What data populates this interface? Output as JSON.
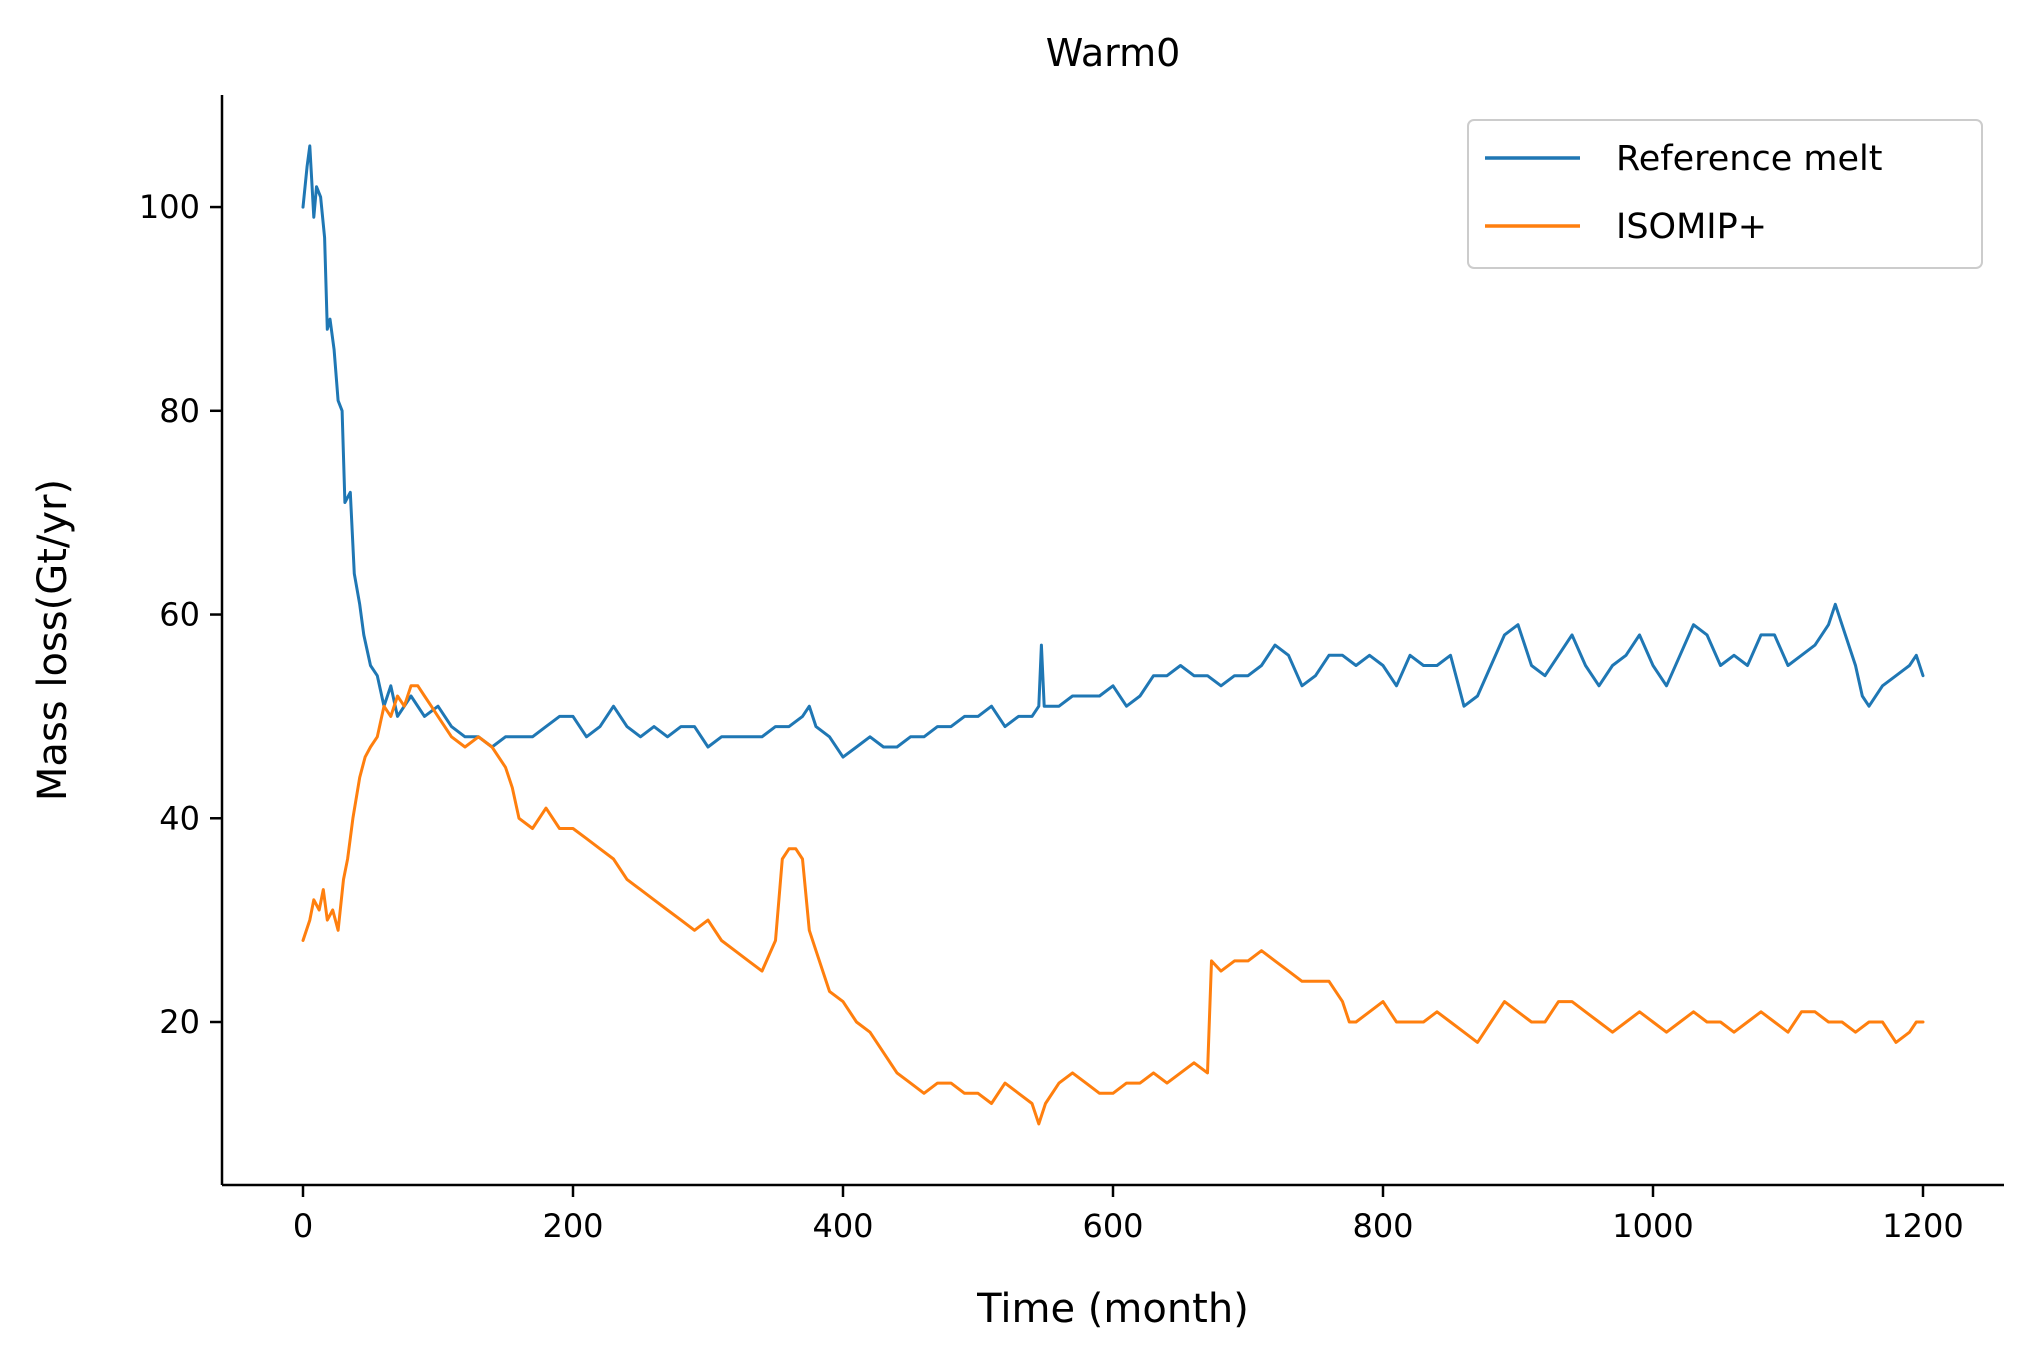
{
  "chart_data": {
    "type": "line",
    "title": "Warm0",
    "xlabel": "Time (month)",
    "ylabel": "Mass loss(Gt/yr)",
    "xlim": [
      -60,
      1260
    ],
    "ylim": [
      4,
      111
    ],
    "xticks": [
      0,
      200,
      400,
      600,
      800,
      1000,
      1200
    ],
    "yticks": [
      20,
      40,
      60,
      80,
      100
    ],
    "xtick_labels": [
      "0",
      "200",
      "400",
      "600",
      "800",
      "1000",
      "1200"
    ],
    "ytick_labels": [
      "20",
      "40",
      "60",
      "80",
      "100"
    ],
    "grid": false,
    "legend_position": "top-right",
    "series": [
      {
        "name": "Reference melt",
        "color": "#1f77b4",
        "points": [
          [
            0,
            100
          ],
          [
            3,
            104
          ],
          [
            5,
            106
          ],
          [
            8,
            99
          ],
          [
            10,
            102
          ],
          [
            13,
            101
          ],
          [
            16,
            97
          ],
          [
            18,
            88
          ],
          [
            20,
            89
          ],
          [
            23,
            86
          ],
          [
            26,
            81
          ],
          [
            29,
            80
          ],
          [
            31,
            71
          ],
          [
            35,
            72
          ],
          [
            38,
            64
          ],
          [
            42,
            61
          ],
          [
            45,
            58
          ],
          [
            50,
            55
          ],
          [
            55,
            54
          ],
          [
            60,
            51
          ],
          [
            65,
            53
          ],
          [
            70,
            50
          ],
          [
            80,
            52
          ],
          [
            90,
            50
          ],
          [
            100,
            51
          ],
          [
            110,
            49
          ],
          [
            120,
            48
          ],
          [
            130,
            48
          ],
          [
            140,
            47
          ],
          [
            150,
            48
          ],
          [
            160,
            48
          ],
          [
            170,
            48
          ],
          [
            180,
            49
          ],
          [
            190,
            50
          ],
          [
            200,
            50
          ],
          [
            210,
            48
          ],
          [
            220,
            49
          ],
          [
            230,
            51
          ],
          [
            240,
            49
          ],
          [
            250,
            48
          ],
          [
            260,
            49
          ],
          [
            270,
            48
          ],
          [
            280,
            49
          ],
          [
            290,
            49
          ],
          [
            300,
            47
          ],
          [
            310,
            48
          ],
          [
            320,
            48
          ],
          [
            330,
            48
          ],
          [
            340,
            48
          ],
          [
            350,
            49
          ],
          [
            360,
            49
          ],
          [
            370,
            50
          ],
          [
            375,
            51
          ],
          [
            380,
            49
          ],
          [
            390,
            48
          ],
          [
            400,
            46
          ],
          [
            410,
            47
          ],
          [
            420,
            48
          ],
          [
            430,
            47
          ],
          [
            440,
            47
          ],
          [
            450,
            48
          ],
          [
            460,
            48
          ],
          [
            470,
            49
          ],
          [
            480,
            49
          ],
          [
            490,
            50
          ],
          [
            500,
            50
          ],
          [
            510,
            51
          ],
          [
            520,
            49
          ],
          [
            530,
            50
          ],
          [
            540,
            50
          ],
          [
            545,
            51
          ],
          [
            547,
            57
          ],
          [
            549,
            51
          ],
          [
            560,
            51
          ],
          [
            570,
            52
          ],
          [
            580,
            52
          ],
          [
            590,
            52
          ],
          [
            600,
            53
          ],
          [
            610,
            51
          ],
          [
            620,
            52
          ],
          [
            630,
            54
          ],
          [
            640,
            54
          ],
          [
            650,
            55
          ],
          [
            660,
            54
          ],
          [
            670,
            54
          ],
          [
            680,
            53
          ],
          [
            690,
            54
          ],
          [
            700,
            54
          ],
          [
            710,
            55
          ],
          [
            720,
            57
          ],
          [
            730,
            56
          ],
          [
            740,
            53
          ],
          [
            750,
            54
          ],
          [
            760,
            56
          ],
          [
            770,
            56
          ],
          [
            780,
            55
          ],
          [
            790,
            56
          ],
          [
            800,
            55
          ],
          [
            810,
            53
          ],
          [
            820,
            56
          ],
          [
            830,
            55
          ],
          [
            840,
            55
          ],
          [
            850,
            56
          ],
          [
            860,
            51
          ],
          [
            870,
            52
          ],
          [
            880,
            55
          ],
          [
            890,
            58
          ],
          [
            900,
            59
          ],
          [
            910,
            55
          ],
          [
            920,
            54
          ],
          [
            930,
            56
          ],
          [
            940,
            58
          ],
          [
            950,
            55
          ],
          [
            960,
            53
          ],
          [
            970,
            55
          ],
          [
            980,
            56
          ],
          [
            990,
            58
          ],
          [
            1000,
            55
          ],
          [
            1010,
            53
          ],
          [
            1020,
            56
          ],
          [
            1030,
            59
          ],
          [
            1040,
            58
          ],
          [
            1050,
            55
          ],
          [
            1060,
            56
          ],
          [
            1070,
            55
          ],
          [
            1080,
            58
          ],
          [
            1090,
            58
          ],
          [
            1100,
            55
          ],
          [
            1110,
            56
          ],
          [
            1120,
            57
          ],
          [
            1130,
            59
          ],
          [
            1135,
            61
          ],
          [
            1140,
            59
          ],
          [
            1150,
            55
          ],
          [
            1155,
            52
          ],
          [
            1160,
            51
          ],
          [
            1170,
            53
          ],
          [
            1180,
            54
          ],
          [
            1190,
            55
          ],
          [
            1195,
            56
          ],
          [
            1200,
            54
          ]
        ]
      },
      {
        "name": "ISOMIP+",
        "color": "#ff7f0e",
        "points": [
          [
            0,
            28
          ],
          [
            5,
            30
          ],
          [
            8,
            32
          ],
          [
            12,
            31
          ],
          [
            15,
            33
          ],
          [
            18,
            30
          ],
          [
            22,
            31
          ],
          [
            26,
            29
          ],
          [
            30,
            34
          ],
          [
            33,
            36
          ],
          [
            37,
            40
          ],
          [
            42,
            44
          ],
          [
            46,
            46
          ],
          [
            50,
            47
          ],
          [
            55,
            48
          ],
          [
            60,
            51
          ],
          [
            65,
            50
          ],
          [
            70,
            52
          ],
          [
            75,
            51
          ],
          [
            80,
            53
          ],
          [
            85,
            53
          ],
          [
            90,
            52
          ],
          [
            95,
            51
          ],
          [
            100,
            50
          ],
          [
            110,
            48
          ],
          [
            120,
            47
          ],
          [
            130,
            48
          ],
          [
            140,
            47
          ],
          [
            150,
            45
          ],
          [
            155,
            43
          ],
          [
            160,
            40
          ],
          [
            170,
            39
          ],
          [
            180,
            41
          ],
          [
            190,
            39
          ],
          [
            200,
            39
          ],
          [
            210,
            38
          ],
          [
            220,
            37
          ],
          [
            230,
            36
          ],
          [
            240,
            34
          ],
          [
            250,
            33
          ],
          [
            260,
            32
          ],
          [
            270,
            31
          ],
          [
            280,
            30
          ],
          [
            290,
            29
          ],
          [
            300,
            30
          ],
          [
            310,
            28
          ],
          [
            320,
            27
          ],
          [
            330,
            26
          ],
          [
            340,
            25
          ],
          [
            350,
            28
          ],
          [
            355,
            36
          ],
          [
            360,
            37
          ],
          [
            365,
            37
          ],
          [
            370,
            36
          ],
          [
            375,
            29
          ],
          [
            380,
            27
          ],
          [
            390,
            23
          ],
          [
            400,
            22
          ],
          [
            410,
            20
          ],
          [
            420,
            19
          ],
          [
            430,
            17
          ],
          [
            440,
            15
          ],
          [
            450,
            14
          ],
          [
            460,
            13
          ],
          [
            470,
            14
          ],
          [
            480,
            14
          ],
          [
            490,
            13
          ],
          [
            500,
            13
          ],
          [
            510,
            12
          ],
          [
            520,
            14
          ],
          [
            530,
            13
          ],
          [
            540,
            12
          ],
          [
            545,
            10
          ],
          [
            550,
            12
          ],
          [
            560,
            14
          ],
          [
            570,
            15
          ],
          [
            580,
            14
          ],
          [
            590,
            13
          ],
          [
            600,
            13
          ],
          [
            610,
            14
          ],
          [
            620,
            14
          ],
          [
            630,
            15
          ],
          [
            640,
            14
          ],
          [
            650,
            15
          ],
          [
            660,
            16
          ],
          [
            670,
            15
          ],
          [
            673,
            26
          ],
          [
            680,
            25
          ],
          [
            690,
            26
          ],
          [
            700,
            26
          ],
          [
            710,
            27
          ],
          [
            720,
            26
          ],
          [
            730,
            25
          ],
          [
            740,
            24
          ],
          [
            750,
            24
          ],
          [
            760,
            24
          ],
          [
            770,
            22
          ],
          [
            775,
            20
          ],
          [
            780,
            20
          ],
          [
            790,
            21
          ],
          [
            800,
            22
          ],
          [
            810,
            20
          ],
          [
            820,
            20
          ],
          [
            830,
            20
          ],
          [
            840,
            21
          ],
          [
            850,
            20
          ],
          [
            860,
            19
          ],
          [
            870,
            18
          ],
          [
            880,
            20
          ],
          [
            890,
            22
          ],
          [
            900,
            21
          ],
          [
            910,
            20
          ],
          [
            920,
            20
          ],
          [
            930,
            22
          ],
          [
            940,
            22
          ],
          [
            950,
            21
          ],
          [
            960,
            20
          ],
          [
            970,
            19
          ],
          [
            980,
            20
          ],
          [
            990,
            21
          ],
          [
            1000,
            20
          ],
          [
            1010,
            19
          ],
          [
            1020,
            20
          ],
          [
            1030,
            21
          ],
          [
            1040,
            20
          ],
          [
            1050,
            20
          ],
          [
            1060,
            19
          ],
          [
            1070,
            20
          ],
          [
            1080,
            21
          ],
          [
            1090,
            20
          ],
          [
            1100,
            19
          ],
          [
            1110,
            21
          ],
          [
            1120,
            21
          ],
          [
            1130,
            20
          ],
          [
            1140,
            20
          ],
          [
            1150,
            19
          ],
          [
            1160,
            20
          ],
          [
            1170,
            20
          ],
          [
            1180,
            18
          ],
          [
            1190,
            19
          ],
          [
            1195,
            20
          ],
          [
            1200,
            20
          ]
        ]
      }
    ]
  }
}
